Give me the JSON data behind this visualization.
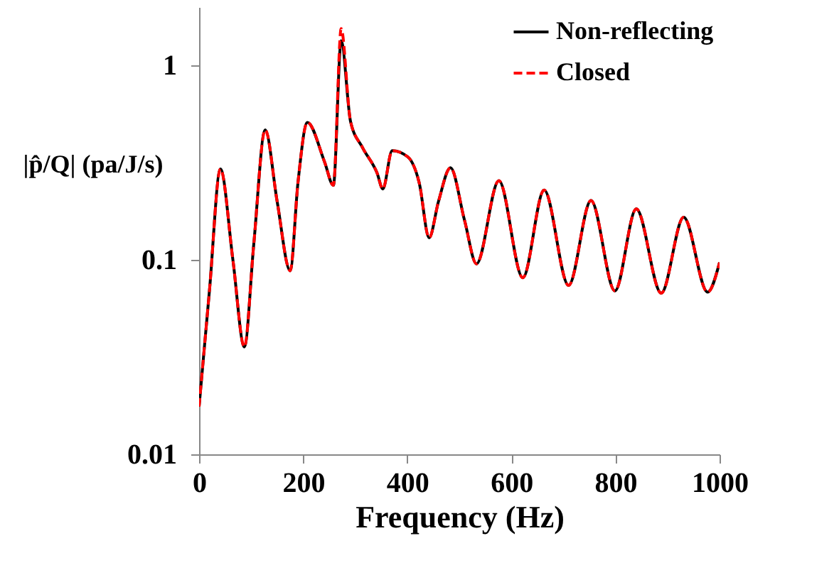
{
  "chart_data": {
    "type": "line",
    "xlabel": "Frequency (Hz)",
    "ylabel": "|p̂/Q| (pa/J/s)",
    "x": [
      0,
      20,
      41,
      65,
      87,
      105,
      127,
      150,
      175,
      190,
      208,
      241,
      258,
      273,
      291,
      314,
      342,
      353,
      371,
      401,
      423,
      442,
      460,
      483,
      510,
      533,
      576,
      622,
      663,
      710,
      753,
      799,
      840,
      888,
      931,
      977,
      1000
    ],
    "series": [
      {
        "name": "Non-reflecting",
        "color": "#000000",
        "line_style": "solid",
        "values": [
          0.0176,
          0.07,
          0.294,
          0.1,
          0.0357,
          0.12,
          0.467,
          0.2,
          0.088,
          0.25,
          0.51,
          0.32,
          0.242,
          1.34,
          0.516,
          0.379,
          0.28,
          0.232,
          0.365,
          0.339,
          0.249,
          0.13,
          0.2,
          0.298,
          0.16,
          0.0955,
          0.256,
          0.081,
          0.229,
          0.074,
          0.202,
          0.0693,
          0.183,
          0.0675,
          0.166,
          0.0683,
          0.097
        ]
      },
      {
        "name": "Closed",
        "color": "#ff0000",
        "line_style": "dashed",
        "values": [
          0.0176,
          0.07,
          0.294,
          0.1,
          0.0357,
          0.12,
          0.467,
          0.2,
          0.088,
          0.25,
          0.51,
          0.32,
          0.242,
          1.55,
          0.516,
          0.379,
          0.28,
          0.232,
          0.365,
          0.339,
          0.249,
          0.13,
          0.2,
          0.298,
          0.16,
          0.0955,
          0.256,
          0.081,
          0.229,
          0.074,
          0.202,
          0.0693,
          0.183,
          0.0675,
          0.166,
          0.0683,
          0.097
        ]
      }
    ],
    "xlim": [
      0,
      1000
    ],
    "xticks": [
      0,
      200,
      400,
      600,
      800,
      {
        "value": 1000,
        "label": "1000"
      }
    ],
    "ylim": [
      0.01,
      2
    ],
    "yticks": [
      0.01,
      0.1,
      1
    ],
    "log": "y",
    "grid": false,
    "legend": "top right"
  }
}
